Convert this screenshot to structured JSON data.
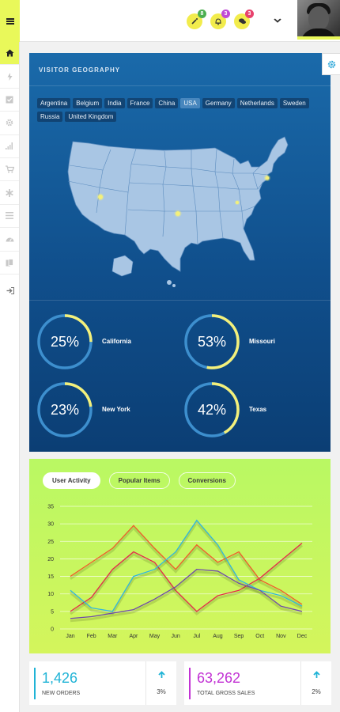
{
  "topbar": {
    "notifications": [
      {
        "icon": "magic-wand-icon",
        "badge": "8",
        "badge_color": "#4caf50"
      },
      {
        "icon": "bell-icon",
        "badge": "3",
        "badge_color": "#c04bd6"
      },
      {
        "icon": "chat-bubble-icon",
        "badge": "3",
        "badge_color": "#e8426d"
      }
    ],
    "dropdown_icon": "chevron-down-icon",
    "menu_icon": "hamburger-menu-icon",
    "avatar": "user-avatar-photo"
  },
  "sidebar": {
    "items": [
      "home-icon",
      "bolt-icon",
      "checkbox-icon",
      "gear-icon",
      "bars-signal-icon",
      "cart-icon",
      "asterisk-icon",
      "list-icon",
      "dashboard-gauge-icon",
      "files-icon"
    ],
    "logout_icon": "sign-out-icon",
    "active_index": 0
  },
  "geo": {
    "title": "VISITOR GEOGRAPHY",
    "countries": [
      "Argentina",
      "Belgium",
      "India",
      "France",
      "China",
      "USA",
      "Germany",
      "Netherlands",
      "Sweden",
      "Russia",
      "United Kingdom"
    ],
    "selected_country": "USA",
    "stats": [
      {
        "pct": "25%",
        "value": 25,
        "name": "California"
      },
      {
        "pct": "53%",
        "value": 53,
        "name": "Missouri"
      },
      {
        "pct": "23%",
        "value": 23,
        "name": "New York"
      },
      {
        "pct": "42%",
        "value": 42,
        "name": "Texas"
      }
    ],
    "ring_color": "#f4f07a",
    "ring_track": "#3d8fce"
  },
  "settings_icon": "gear-icon",
  "activity": {
    "tabs": [
      "User Activity",
      "Popular Items",
      "Conversions"
    ],
    "active_tab": "User Activity"
  },
  "chart_data": {
    "type": "line",
    "categories": [
      "Jan",
      "Feb",
      "Mar",
      "Apr",
      "May",
      "Jun",
      "Jul",
      "Aug",
      "Sep",
      "Oct",
      "Nov",
      "Dec"
    ],
    "ylim": [
      0,
      35
    ],
    "yticks": [
      0,
      5,
      10,
      15,
      20,
      25,
      30,
      35
    ],
    "grid": true,
    "series": [
      {
        "color": "#f05c2c",
        "values": [
          15,
          19,
          23,
          29.5,
          23,
          17,
          24,
          19,
          22,
          14,
          11,
          7
        ]
      },
      {
        "color": "#e4294b",
        "values": [
          5,
          9,
          17,
          22,
          19,
          11,
          5,
          9.5,
          11,
          14.5,
          19.5,
          24.5
        ]
      },
      {
        "color": "#2fb5e0",
        "values": [
          11,
          6,
          5,
          15,
          17,
          22,
          31,
          24,
          14,
          11,
          9.5,
          6.5
        ]
      },
      {
        "color": "#6e4aa8",
        "values": [
          3,
          3.5,
          4.5,
          5.5,
          8.5,
          12,
          17,
          16.5,
          13,
          11,
          6.5,
          5
        ]
      }
    ]
  },
  "cards": [
    {
      "value": "1,426",
      "label": "NEW ORDERS",
      "change": "3%",
      "color": "#1fb3d6",
      "arrow": "arrow-up-icon"
    },
    {
      "value": "63,262",
      "label": "TOTAL GROSS SALES",
      "change": "2%",
      "color": "#c232d4",
      "arrow": "arrow-up-icon"
    }
  ]
}
